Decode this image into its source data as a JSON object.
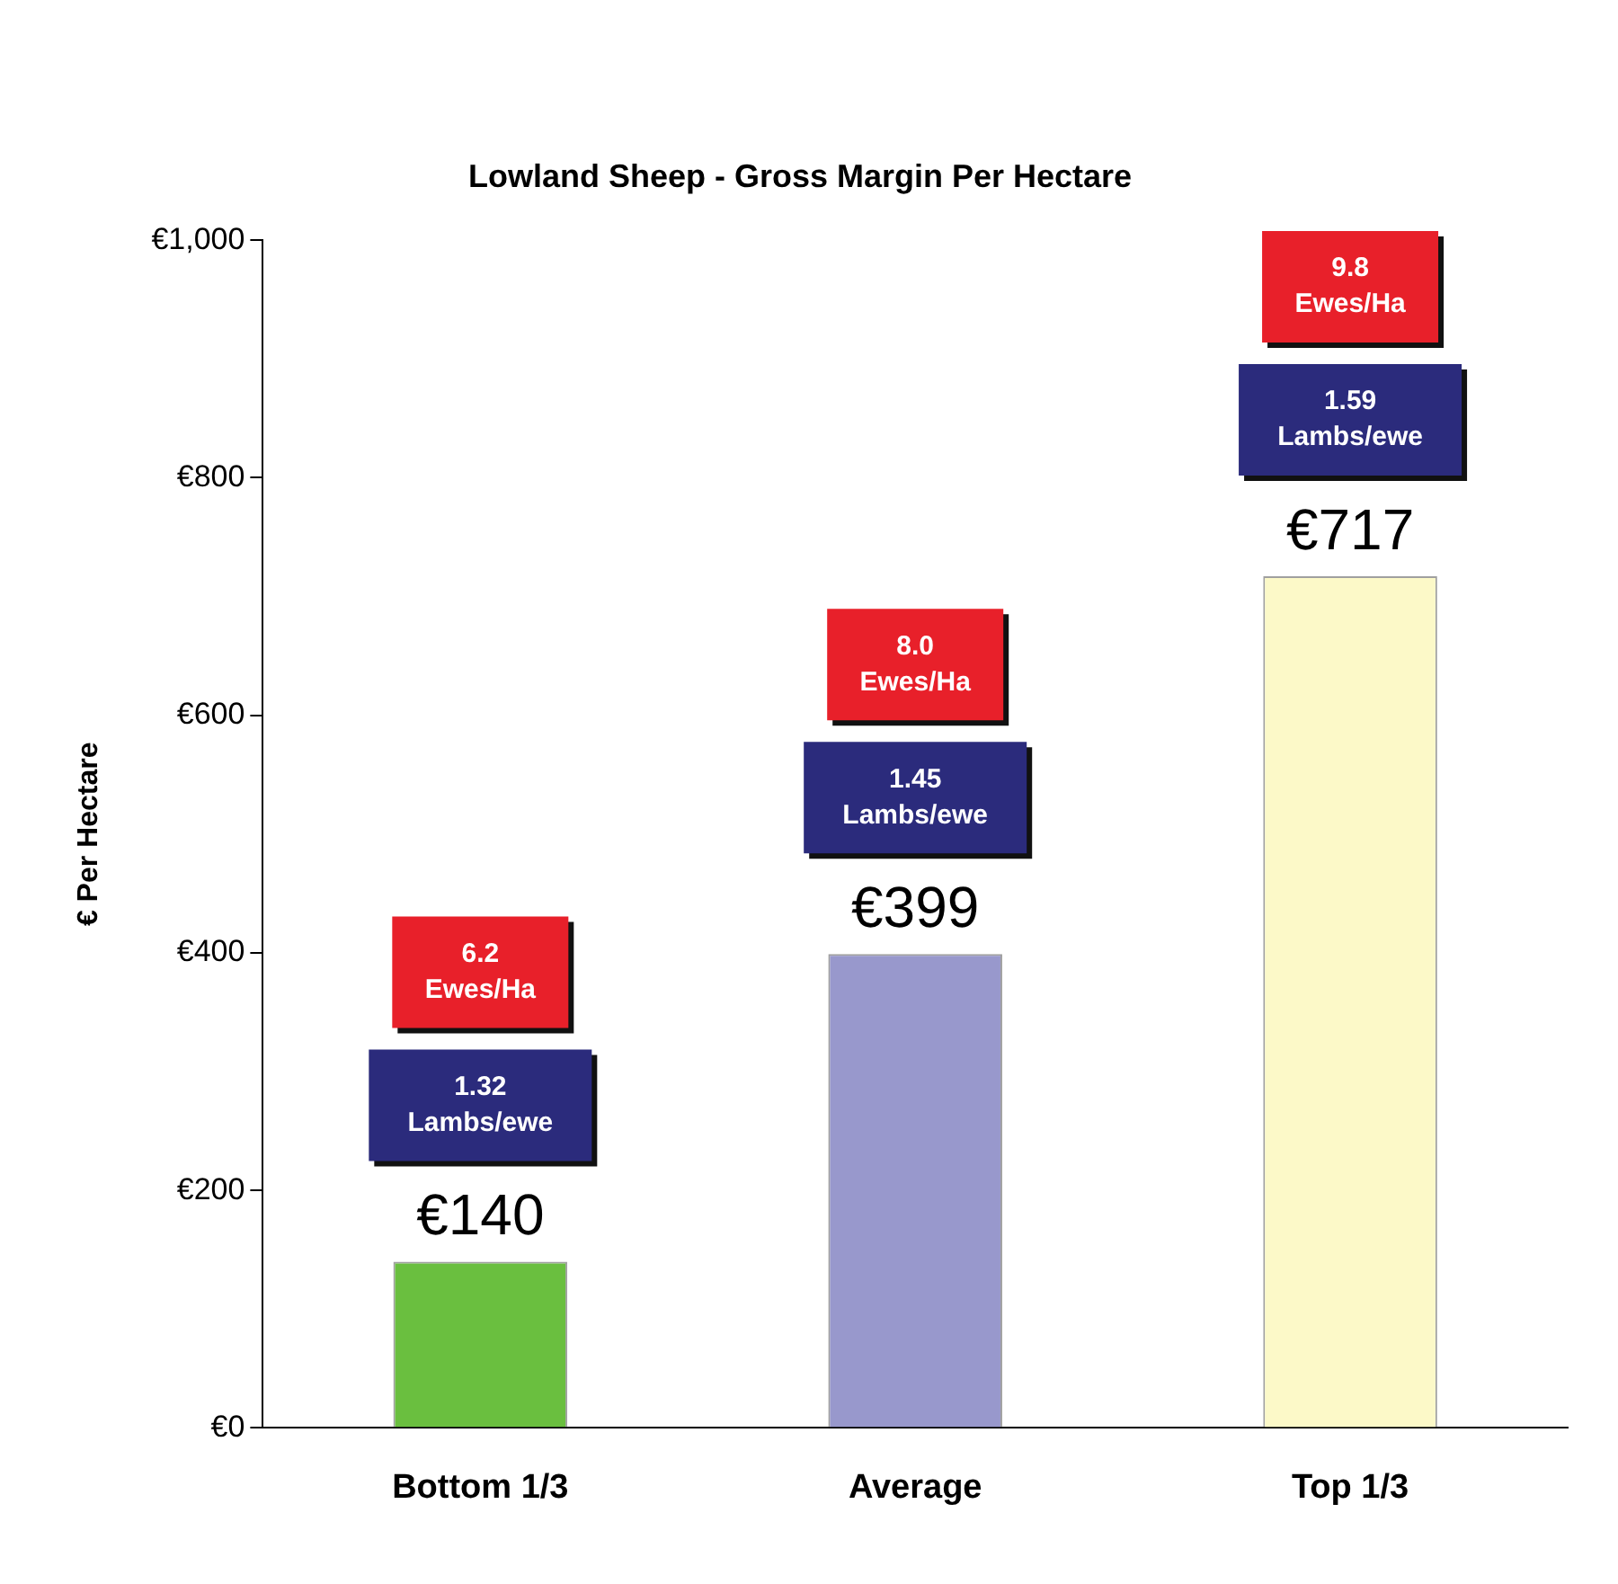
{
  "chart_data": {
    "type": "bar",
    "title": "Lowland Sheep - Gross Margin Per Hectare",
    "ylabel": "€ Per Hectare",
    "categories": [
      "Bottom 1/3",
      "Average",
      "Top 1/3"
    ],
    "values": [
      140,
      399,
      717
    ],
    "colors": [
      "#6abf3f",
      "#9898cc",
      "#fcf9c8"
    ],
    "value_labels": [
      "€140",
      "€399",
      "€717"
    ],
    "ylim": [
      0,
      1000
    ],
    "yticks": [
      {
        "value": 0,
        "label": "€0"
      },
      {
        "value": 200,
        "label": "€200"
      },
      {
        "value": 400,
        "label": "€400"
      },
      {
        "value": 600,
        "label": "€600"
      },
      {
        "value": 800,
        "label": "€800"
      },
      {
        "value": 1000,
        "label": "€1,000"
      }
    ],
    "grid": false,
    "legend": false,
    "annotations": [
      "6.2\nEwes/Ha",
      "1.32\nLambs/ewe",
      "8.0\nEwes/Ha",
      "1.45\nLambs/ewe",
      "9.8\nEwes/Ha",
      "1.59\nLambs/ewe"
    ]
  }
}
